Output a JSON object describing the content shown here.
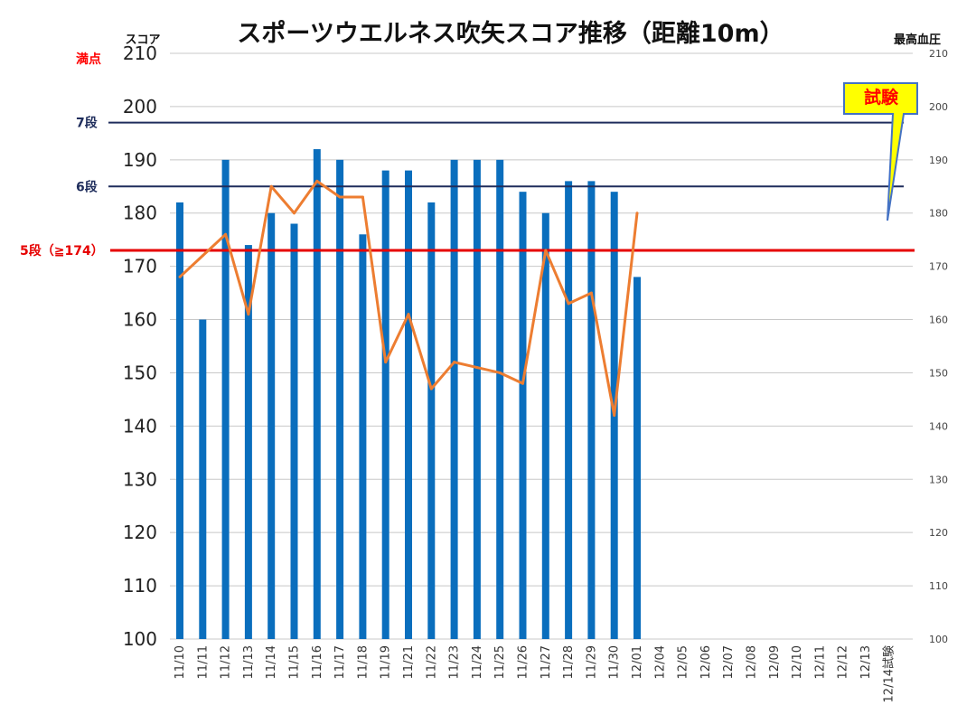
{
  "chart_data": {
    "type": "bar",
    "title": "スポーツウエルネス吹矢スコア推移（距離10m）",
    "left_axis_label": "スコア",
    "right_axis_label": "最高血圧",
    "ylim": [
      100,
      210
    ],
    "yticks": [
      100,
      110,
      120,
      130,
      140,
      150,
      160,
      170,
      180,
      190,
      200,
      210
    ],
    "y2lim": [
      100,
      210
    ],
    "y2ticks": [
      100,
      110,
      120,
      130,
      140,
      150,
      160,
      170,
      180,
      190,
      200,
      210
    ],
    "grid": true,
    "categories": [
      "11/10",
      "11/11",
      "11/12",
      "11/13",
      "11/14",
      "11/15",
      "11/16",
      "11/17",
      "11/18",
      "11/19",
      "11/21",
      "11/22",
      "11/23",
      "11/24",
      "11/25",
      "11/26",
      "11/27",
      "11/28",
      "11/29",
      "11/30",
      "12/01",
      "12/04",
      "12/05",
      "12/06",
      "12/07",
      "12/08",
      "12/09",
      "12/10",
      "12/11",
      "12/12",
      "12/13",
      "12/14試験"
    ],
    "series": [
      {
        "kind": "bar",
        "axis": "left",
        "color": "#0a6ebd",
        "values": [
          182,
          160,
          190,
          174,
          180,
          178,
          192,
          190,
          176,
          188,
          188,
          182,
          190,
          190,
          190,
          184,
          180,
          186,
          186,
          184,
          168,
          null,
          null,
          null,
          null,
          null,
          null,
          null,
          null,
          null,
          null,
          null
        ]
      },
      {
        "kind": "line",
        "axis": "right",
        "color": "#ed7d31",
        "values": [
          168,
          172,
          176,
          161,
          185,
          180,
          186,
          183,
          183,
          152,
          161,
          147,
          152,
          151,
          150,
          148,
          173,
          163,
          165,
          142,
          180,
          null,
          null,
          null,
          null,
          null,
          null,
          null,
          null,
          null,
          null,
          null
        ]
      }
    ],
    "reference_lines": [
      {
        "label": "満点",
        "value": 210,
        "color": "#ff0000",
        "show_line": false
      },
      {
        "label": "7段",
        "value": 197,
        "color": "#1f2d5c",
        "show_line": true
      },
      {
        "label": "6段",
        "value": 185,
        "color": "#1f2d5c",
        "show_line": true
      },
      {
        "label": "5段（≧174）",
        "value": 173,
        "color": "#e60000",
        "show_line": true
      }
    ],
    "callout": {
      "text": "試験",
      "fill": "#ffff00",
      "border": "#4472c4"
    }
  }
}
